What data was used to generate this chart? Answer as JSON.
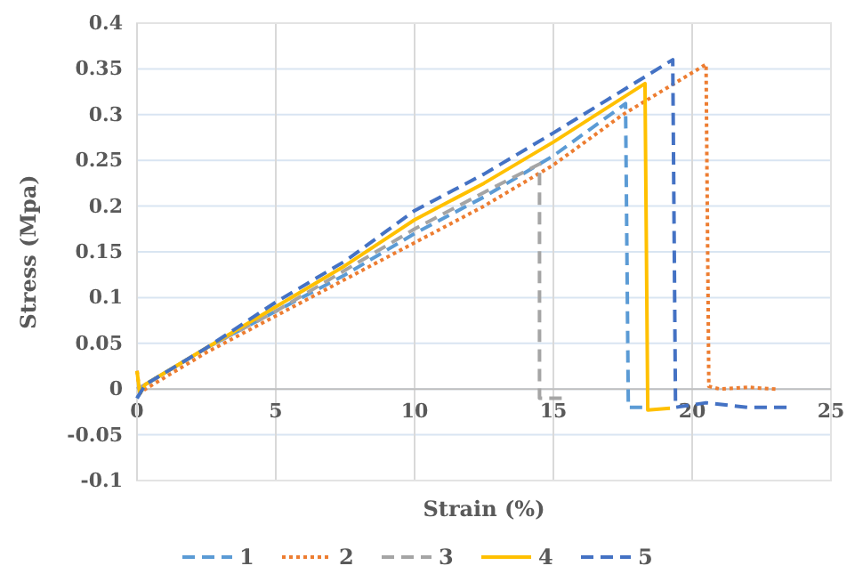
{
  "chart_data": {
    "type": "line",
    "xlabel": "Strain (%)",
    "ylabel": "Stress (Mpa)",
    "xlim": [
      0,
      25
    ],
    "xticks": [
      0,
      5,
      10,
      15,
      20,
      25
    ],
    "ylim": [
      -0.1,
      0.4
    ],
    "yticks": [
      -0.1,
      -0.05,
      0,
      0.05,
      0.1,
      0.15,
      0.2,
      0.25,
      0.3,
      0.35,
      0.4
    ],
    "grid": true,
    "legend": "bottom",
    "series": [
      {
        "name": "1",
        "color": "#5b9bd5",
        "line_style": "dashed",
        "x": [
          0,
          0.3,
          2.5,
          5,
          7.5,
          10,
          12.5,
          15,
          17.6,
          17.7,
          18.2
        ],
        "values": [
          -0.01,
          0.005,
          0.045,
          0.085,
          0.125,
          0.17,
          0.21,
          0.255,
          0.312,
          -0.02,
          -0.02
        ]
      },
      {
        "name": "2",
        "color": "#ed7d31",
        "line_style": "dotted",
        "x": [
          0,
          0.1,
          0.3,
          2.5,
          5,
          7.5,
          10,
          12.5,
          15,
          17.5,
          20.5,
          20.6,
          21,
          22,
          23
        ],
        "values": [
          0.02,
          -0.005,
          0.0,
          0.04,
          0.08,
          0.12,
          0.16,
          0.2,
          0.245,
          0.3,
          0.355,
          0.003,
          0.0,
          0.002,
          0.0
        ]
      },
      {
        "name": "3",
        "color": "#a5a5a5",
        "line_style": "dashed",
        "x": [
          0,
          0.3,
          2.5,
          5,
          7.5,
          10,
          12.5,
          14.5,
          14.5,
          15.3
        ],
        "values": [
          0,
          0.005,
          0.045,
          0.085,
          0.13,
          0.175,
          0.215,
          0.246,
          -0.01,
          -0.01
        ]
      },
      {
        "name": "4",
        "color": "#ffc000",
        "line_style": "solid",
        "x": [
          0,
          0.1,
          0.3,
          2.5,
          5,
          7.5,
          10,
          12.5,
          15,
          18.3,
          18.4,
          19.2
        ],
        "values": [
          0.02,
          -0.005,
          0.005,
          0.045,
          0.09,
          0.135,
          0.185,
          0.225,
          0.27,
          0.334,
          -0.023,
          -0.021
        ]
      },
      {
        "name": "5",
        "color": "#4472c4",
        "line_style": "dashed",
        "x": [
          0,
          0.3,
          2.5,
          5,
          7.5,
          10,
          12.5,
          15,
          19.3,
          19.4,
          20.5,
          22,
          23.4
        ],
        "values": [
          -0.01,
          0.005,
          0.045,
          0.095,
          0.14,
          0.195,
          0.235,
          0.28,
          0.36,
          -0.02,
          -0.015,
          -0.02,
          -0.02
        ]
      }
    ]
  }
}
